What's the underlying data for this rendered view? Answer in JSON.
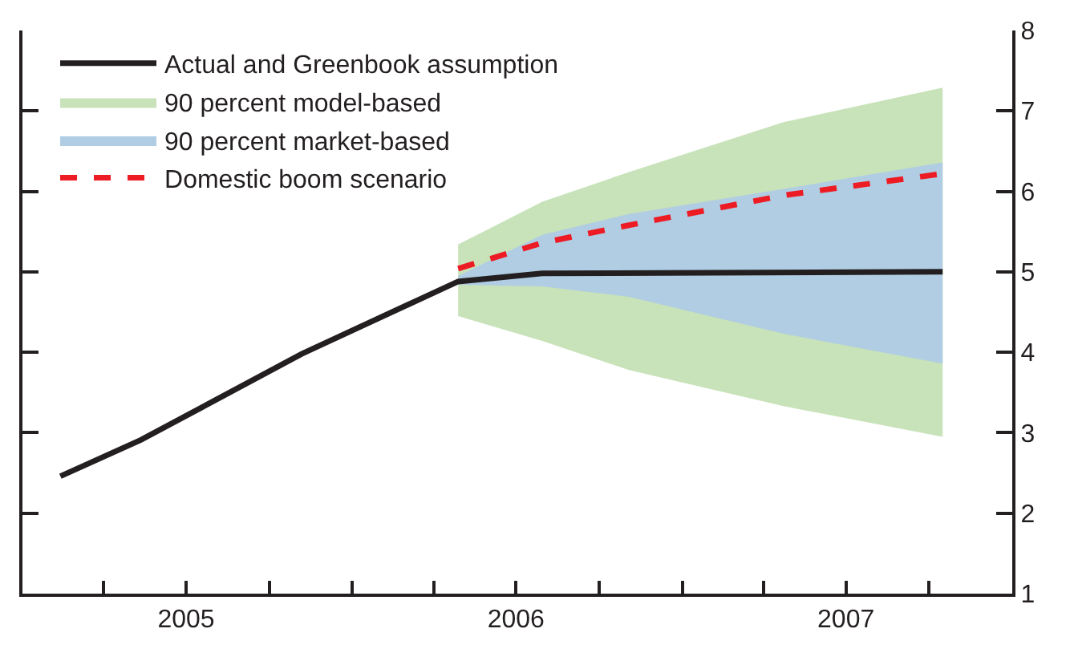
{
  "chart_data": {
    "type": "line",
    "series": [
      {
        "name": "Actual and Greenbook assumption",
        "color": "#231f20",
        "line_style": "solid",
        "x": [
          "2005-02-12",
          "2005-05-12",
          "2005-11-06",
          "2006-04-28",
          "2006-07-30",
          "2007-10-16"
        ],
        "values": [
          2.46,
          2.91,
          3.98,
          4.88,
          4.98,
          5.0
        ]
      },
      {
        "name": "90 percent model-based",
        "type": "area",
        "color": "#c8e2b9",
        "x": [
          "2006-04-28",
          "2006-07-30",
          "2006-11-03",
          "2007-04-23",
          "2007-10-16"
        ],
        "values": [
          null,
          null,
          null,
          null,
          null
        ],
        "lower": [
          4.45,
          4.14,
          3.78,
          3.33,
          2.95
        ],
        "upper": [
          5.34,
          5.87,
          6.24,
          6.86,
          7.29
        ]
      },
      {
        "name": "90 percent market-based",
        "type": "area",
        "color": "#b0cde3",
        "x": [
          "2006-04-28",
          "2006-07-30",
          "2006-11-03",
          "2007-04-23",
          "2007-10-16"
        ],
        "values": [
          null,
          null,
          null,
          null,
          null
        ],
        "lower": [
          4.84,
          4.82,
          4.69,
          4.23,
          3.86
        ],
        "upper": [
          4.95,
          5.46,
          5.72,
          6.03,
          6.36
        ]
      },
      {
        "name": "Domestic boom scenario",
        "color": "#ed1c24",
        "line_style": "dashed",
        "x": [
          "2006-04-28",
          "2006-07-30",
          "2006-11-03",
          "2007-04-23",
          "2007-10-16"
        ],
        "values": [
          5.04,
          5.36,
          5.58,
          5.95,
          6.22
        ]
      }
    ],
    "xlim": [
      "2005-01-01",
      "2008-01-01"
    ],
    "xticks": [
      {
        "value": "2005-04-01",
        "label": null
      },
      {
        "value": "2005-07-01",
        "label": "2005"
      },
      {
        "value": "2005-10-01",
        "label": null
      },
      {
        "value": "2006-01-01",
        "label": null
      },
      {
        "value": "2006-04-01",
        "label": null
      },
      {
        "value": "2006-07-01",
        "label": "2006"
      },
      {
        "value": "2006-10-01",
        "label": null
      },
      {
        "value": "2007-01-01",
        "label": null
      },
      {
        "value": "2007-04-01",
        "label": null
      },
      {
        "value": "2007-07-01",
        "label": "2007"
      },
      {
        "value": "2007-10-01",
        "label": null
      }
    ],
    "ylim": [
      1,
      8
    ],
    "yticks": [
      1,
      2,
      3,
      4,
      5,
      6,
      7,
      8
    ],
    "legend": "top left",
    "marker": "none"
  }
}
